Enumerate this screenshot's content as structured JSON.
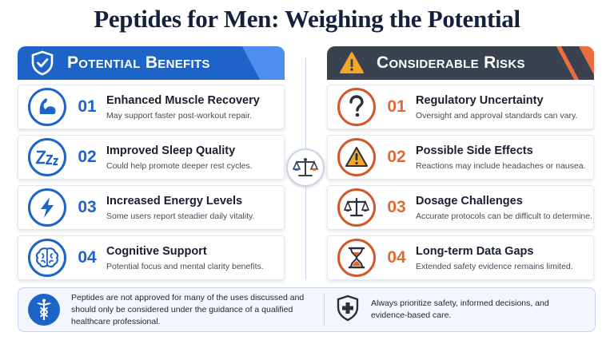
{
  "title": "Peptides for Men: Weighing the Potential",
  "benefits": {
    "header": "Potential Benefits",
    "items": [
      {
        "num": "01",
        "title": "Enhanced Muscle Recovery",
        "desc": "May support faster post-workout repair.",
        "icon": "flexed-arm-icon"
      },
      {
        "num": "02",
        "title": "Improved Sleep Quality",
        "desc": "Could help promote deeper rest cycles.",
        "icon": "sleep-zzz-icon"
      },
      {
        "num": "03",
        "title": "Increased Energy Levels",
        "desc": "Some users report steadier daily vitality.",
        "icon": "lightning-bolt-icon"
      },
      {
        "num": "04",
        "title": "Cognitive Support",
        "desc": "Potential focus and mental clarity benefits.",
        "icon": "brain-icon"
      }
    ]
  },
  "risks": {
    "header": "Considerable Risks",
    "items": [
      {
        "num": "01",
        "title": "Regulatory Uncertainty",
        "desc": "Oversight and approval standards can vary.",
        "icon": "question-mark-icon"
      },
      {
        "num": "02",
        "title": "Possible Side Effects",
        "desc": "Reactions may include headaches or nausea.",
        "icon": "warning-triangle-icon"
      },
      {
        "num": "03",
        "title": "Dosage Challenges",
        "desc": "Accurate protocols can be difficult to determine.",
        "icon": "balance-scale-icon"
      },
      {
        "num": "04",
        "title": "Long-term Data Gaps",
        "desc": "Extended safety evidence remains limited.",
        "icon": "hourglass-icon"
      }
    ]
  },
  "footer": {
    "disclaimer": "Peptides are not approved for many of the uses discussed and should only be considered under the guidance of a qualified healthcare professional.",
    "advice": "Always prioritize safety, informed decisions, and evidence-based care."
  },
  "colors": {
    "benefit_blue": "#1d63c8",
    "risk_orange": "#e06a35",
    "risk_header": "#3a4150",
    "title_navy": "#14213d"
  }
}
